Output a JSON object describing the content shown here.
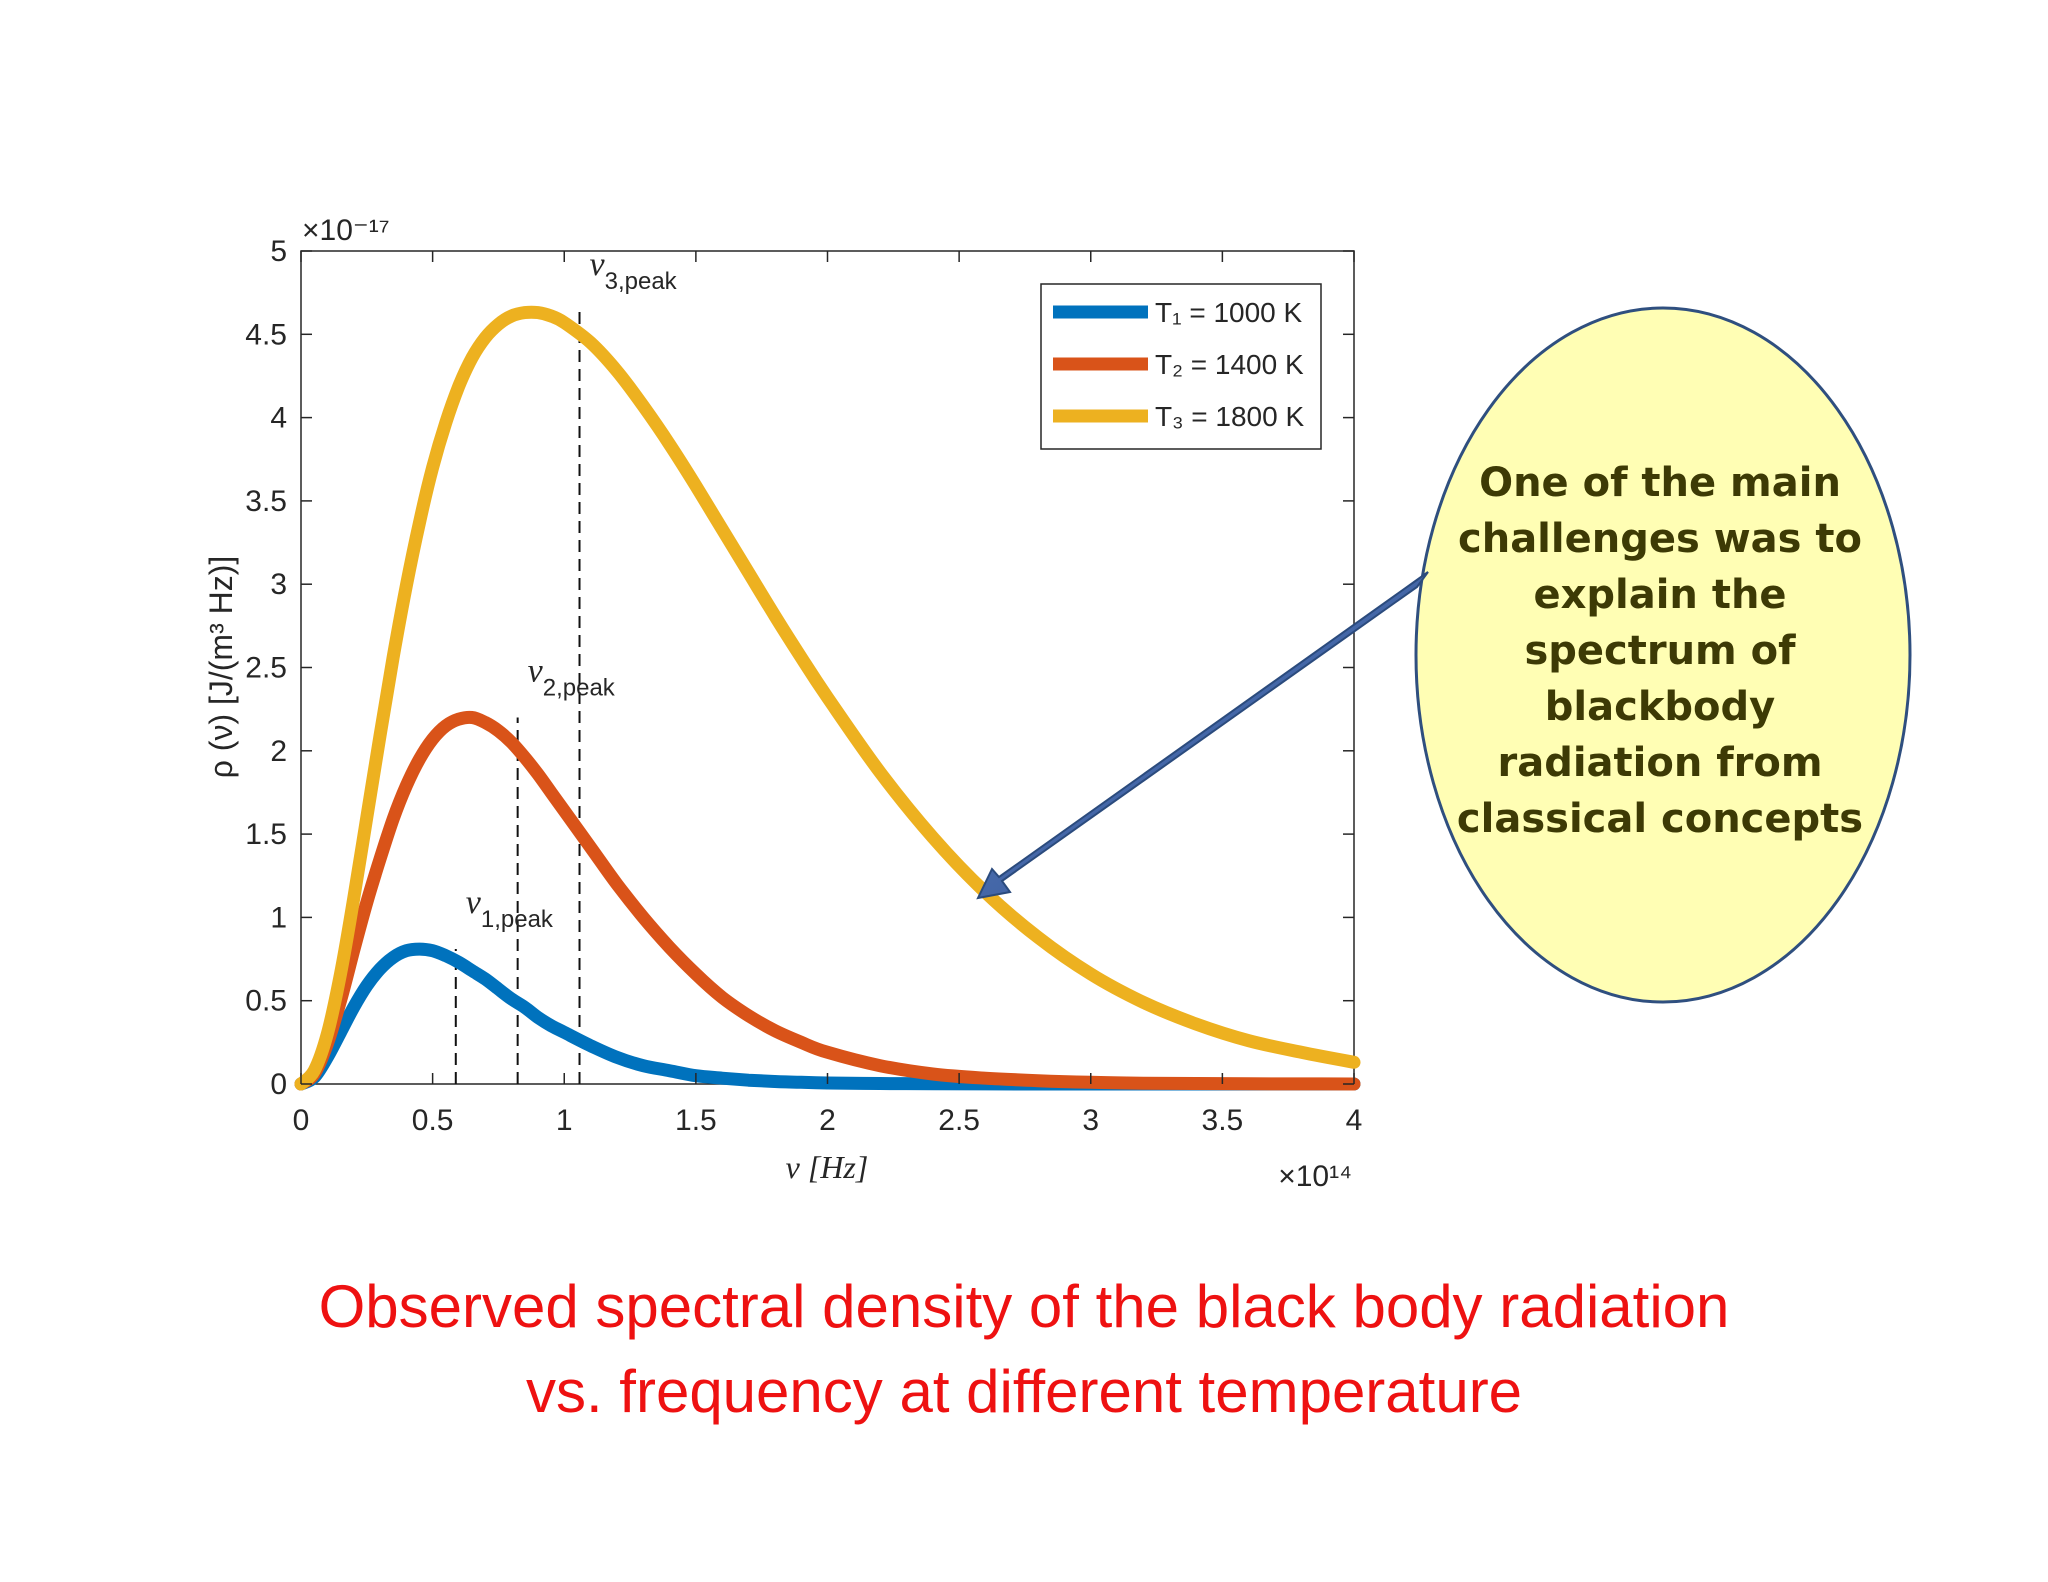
{
  "chart_data": {
    "type": "line",
    "title": "",
    "xlabel": "ν [Hz]",
    "ylabel": "ρ (ν) [J/(m³ Hz)]",
    "x_multiplier": "×10¹⁴",
    "y_multiplier": "×10⁻¹⁷",
    "xlim": [
      0,
      4
    ],
    "ylim": [
      0,
      5
    ],
    "x_ticks": [
      "0",
      "0.5",
      "1",
      "1.5",
      "2",
      "2.5",
      "3",
      "3.5",
      "4"
    ],
    "y_ticks": [
      "0",
      "0.5",
      "1",
      "1.5",
      "2",
      "2.5",
      "3",
      "3.5",
      "4",
      "4.5",
      "5"
    ],
    "grid": false,
    "legend_position": "top-right",
    "x": [
      0,
      0.05,
      0.1,
      0.15,
      0.2,
      0.25,
      0.3,
      0.35,
      0.4,
      0.45,
      0.5,
      0.55,
      0.6,
      0.65,
      0.7,
      0.75,
      0.8,
      0.85,
      0.9,
      0.95,
      1.0,
      1.1,
      1.2,
      1.3,
      1.4,
      1.5,
      1.6,
      1.7,
      1.8,
      1.9,
      2.0,
      2.2,
      2.4,
      2.6,
      2.8,
      3.0,
      3.2,
      3.4,
      3.6,
      3.8,
      4.0
    ],
    "series": [
      {
        "name": "T₁ = 1000 K",
        "color": "#0072BD",
        "values": [
          0,
          0.04,
          0.16,
          0.31,
          0.46,
          0.59,
          0.69,
          0.76,
          0.8,
          0.81,
          0.8,
          0.77,
          0.73,
          0.68,
          0.63,
          0.57,
          0.51,
          0.46,
          0.4,
          0.35,
          0.31,
          0.23,
          0.16,
          0.11,
          0.08,
          0.05,
          0.035,
          0.023,
          0.015,
          0.01,
          0.006,
          0.003,
          0.001,
          0.0005,
          0.0002,
          0.0001,
          0,
          0,
          0,
          0,
          0
        ]
      },
      {
        "name": "T₂ = 1400 K",
        "color": "#D95319",
        "values": [
          0,
          0.06,
          0.24,
          0.5,
          0.8,
          1.09,
          1.35,
          1.59,
          1.79,
          1.95,
          2.07,
          2.15,
          2.19,
          2.2,
          2.17,
          2.12,
          2.05,
          1.96,
          1.86,
          1.75,
          1.64,
          1.42,
          1.2,
          1.0,
          0.82,
          0.66,
          0.52,
          0.41,
          0.32,
          0.25,
          0.19,
          0.11,
          0.06,
          0.035,
          0.02,
          0.01,
          0.005,
          0.003,
          0.001,
          0.0005,
          0.0002
        ]
      },
      {
        "name": "T₃ = 1800 K",
        "color": "#EDB120",
        "values": [
          0,
          0.08,
          0.3,
          0.66,
          1.11,
          1.6,
          2.09,
          2.56,
          2.99,
          3.37,
          3.7,
          3.97,
          4.19,
          4.36,
          4.48,
          4.56,
          4.61,
          4.63,
          4.63,
          4.61,
          4.57,
          4.45,
          4.28,
          4.07,
          3.84,
          3.59,
          3.33,
          3.07,
          2.81,
          2.56,
          2.32,
          1.87,
          1.48,
          1.15,
          0.88,
          0.66,
          0.49,
          0.36,
          0.26,
          0.19,
          0.13
        ]
      }
    ],
    "peak_markers": [
      {
        "label_sub": "1,peak",
        "x": 0.588,
        "y": 0.81
      },
      {
        "label_sub": "2,peak",
        "x": 0.823,
        "y": 2.2
      },
      {
        "label_sub": "3,peak",
        "x": 1.058,
        "y": 4.64
      }
    ]
  },
  "callout": {
    "text": "One of the main challenges was to explain the spectrum of blackbody radiation from classical concepts",
    "fill": "#fffeb4",
    "border": "#2f4f7f",
    "arrow_color": "#3f63a3"
  },
  "caption": {
    "line1": "Observed spectral density of the black body radiation",
    "line2": "vs. frequency at different temperature",
    "color": "#ee1111"
  }
}
